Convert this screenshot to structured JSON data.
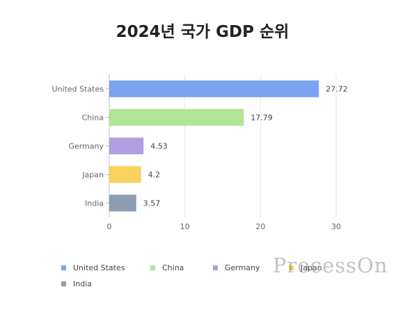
{
  "chart_data": {
    "type": "bar",
    "orientation": "horizontal",
    "title": "2024년 국가 GDP 순위",
    "categories": [
      "United States",
      "China",
      "Germany",
      "Japan",
      "India"
    ],
    "values": [
      27.72,
      17.79,
      4.53,
      4.2,
      3.57
    ],
    "value_labels": [
      "27.72",
      "17.79",
      "4.53",
      "4.2",
      "3.57"
    ],
    "colors": [
      "#7ba3f2",
      "#b0e497",
      "#b09ee0",
      "#f7d25c",
      "#8e9cb2"
    ],
    "xlim": [
      0,
      30
    ],
    "x_ticks": [
      "0",
      "10",
      "20",
      "30"
    ],
    "grid": "vertical",
    "legend": {
      "position": "bottom",
      "items": [
        "United States",
        "China",
        "Germany",
        "Japan",
        "India"
      ]
    }
  },
  "watermark": "ProcessOn"
}
